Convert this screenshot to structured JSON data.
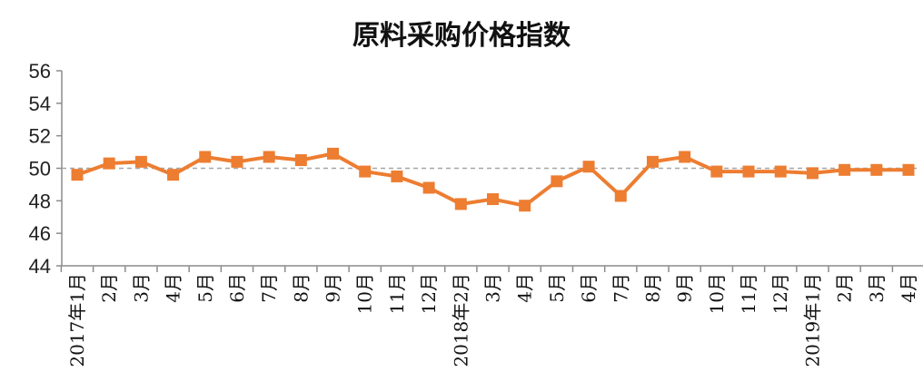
{
  "chart_data": {
    "type": "line",
    "title": "原料采购价格指数",
    "xlabel": "",
    "ylabel": "",
    "categories": [
      "2017年1月",
      "2月",
      "3月",
      "4月",
      "5月",
      "6月",
      "7月",
      "8月",
      "9月",
      "10月",
      "11月",
      "12月",
      "2018年2月",
      "3月",
      "4月",
      "5月",
      "6月",
      "7月",
      "8月",
      "9月",
      "10月",
      "11月",
      "12月",
      "2019年1月",
      "2月",
      "3月",
      "4月"
    ],
    "series": [
      {
        "values": [
          49.6,
          50.3,
          50.4,
          49.6,
          50.7,
          50.4,
          50.7,
          50.5,
          50.9,
          49.8,
          49.5,
          48.8,
          47.8,
          48.1,
          47.7,
          49.2,
          50.1,
          48.3,
          50.4,
          50.7,
          49.8,
          49.8,
          49.8,
          49.7,
          49.9,
          49.9,
          49.9
        ],
        "color": "#ED7D31",
        "marker": "square"
      }
    ],
    "ylim": [
      44,
      56
    ],
    "yticks": [
      44,
      46,
      48,
      50,
      52,
      54,
      56
    ],
    "reference_line": {
      "value": 50,
      "style": "dashed",
      "color": "#A6A6A6"
    },
    "grid": false,
    "legend": "none"
  }
}
